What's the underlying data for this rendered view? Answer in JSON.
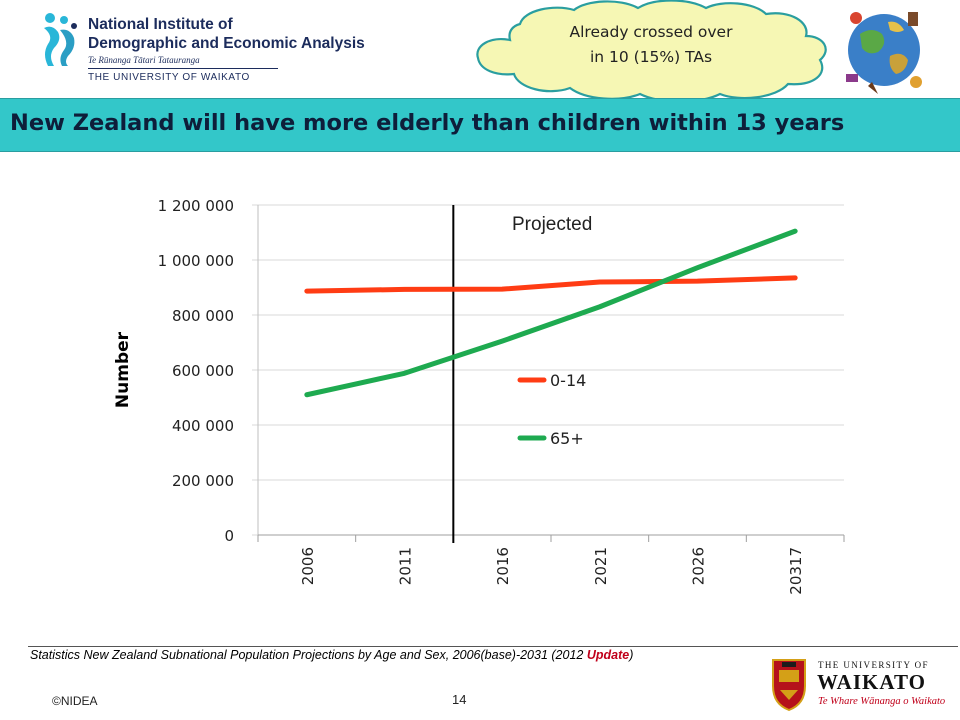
{
  "header": {
    "logo_line1": "National Institute of",
    "logo_line2": "Demographic and Economic Analysis",
    "logo_maori": "Te Rūnanga Tātari Tatauranga",
    "logo_university": "THE UNIVERSITY OF WAIKATO",
    "callout_line1": "Already crossed over",
    "callout_line2": "in 10 (15%) TAs",
    "logo_color": "#1c2c5c"
  },
  "banner": {
    "title": "New Zealand will have more elderly than children within 13 years",
    "bg_color": "#33c7c9"
  },
  "chart_data": {
    "type": "line",
    "categories": [
      "2006",
      "2011",
      "2016",
      "2021",
      "2026",
      "20317"
    ],
    "ylabel": "Number",
    "xlabel": "",
    "ylim": [
      0,
      1200000
    ],
    "yticks": [
      0,
      200000,
      400000,
      600000,
      800000,
      1000000,
      1200000
    ],
    "ytick_labels": [
      "0",
      "200 000",
      "400 000",
      "600 000",
      "800 000",
      "1 000 000",
      "1 200 000"
    ],
    "grid": true,
    "annotation": "Projected",
    "projection_divider_between": [
      "2011",
      "2016"
    ],
    "legend_position": "inside-center",
    "series": [
      {
        "name": "0-14",
        "color": "#ff3c14",
        "values": [
          887000,
          893000,
          894000,
          920000,
          923000,
          935000
        ]
      },
      {
        "name": "65+",
        "color": "#1eaa50",
        "values": [
          510000,
          588000,
          705000,
          830000,
          972000,
          1105000
        ]
      }
    ]
  },
  "footer": {
    "source_text": "Statistics New Zealand Subnational Population Projections by Age and Sex, 2006(base)-2031 (2012",
    "source_update": "Update",
    "source_close": ")",
    "copyright": "©NIDEA",
    "page_number": "14",
    "uow_the": "THE UNIVERSITY OF",
    "uow_name": "WAIKATO",
    "uow_motto": "Te Whare Wānanga o Waikato"
  }
}
